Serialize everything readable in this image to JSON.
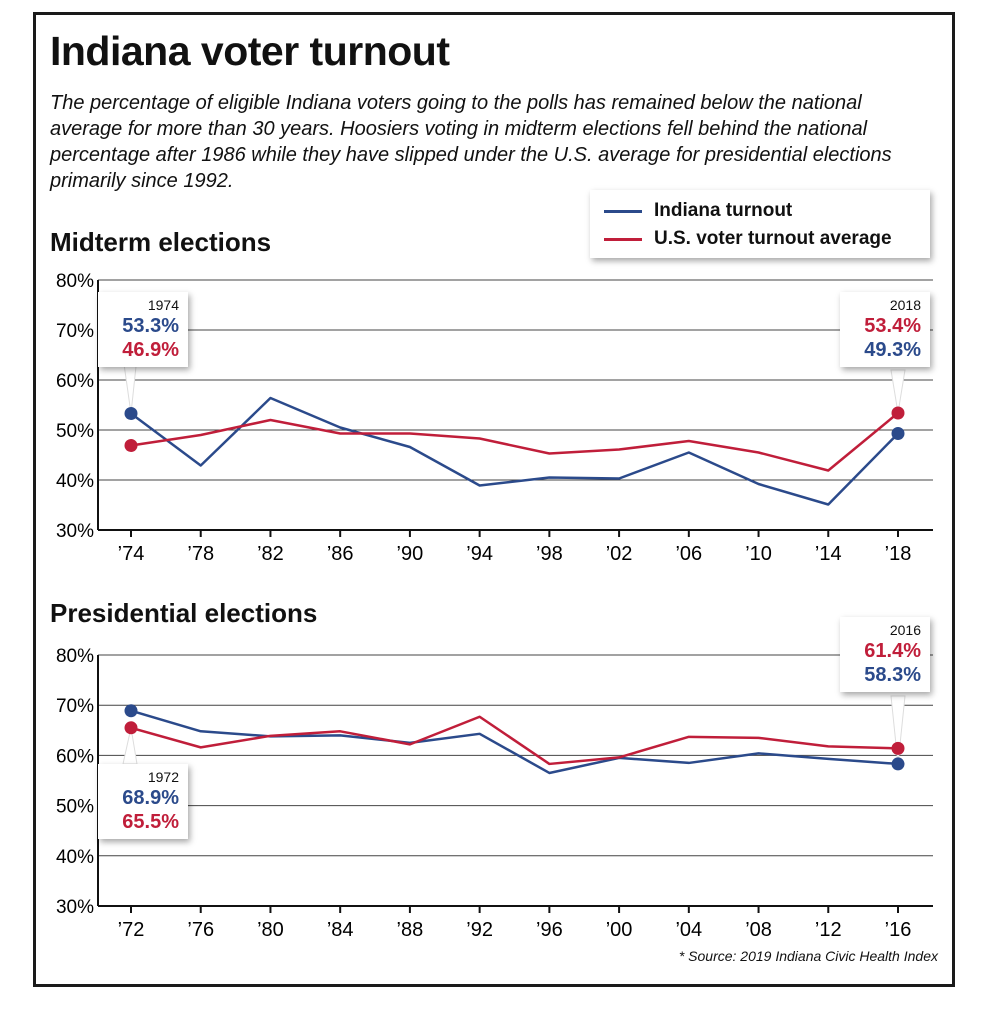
{
  "title": "Indiana voter turnout",
  "subtitle": "The percentage of eligible Indiana voters going to the polls has remained below the national average for more than 30 years. Hoosiers voting in midterm elections fell behind the national percentage after 1986 while they have slipped under the U.S. average for presidential elections primarily since 1992.",
  "legend": {
    "indiana": "Indiana turnout",
    "us": "U.S. voter turnout average"
  },
  "colors": {
    "indiana": "#2b4a8b",
    "us": "#c01e3a",
    "grid": "#444444"
  },
  "source": "* Source: 2019 Indiana Civic Health Index",
  "callouts": {
    "mid_left": {
      "year": "1974",
      "first": "53.3%",
      "second": "46.9%"
    },
    "mid_right": {
      "year": "2018",
      "first": "53.4%",
      "second": "49.3%"
    },
    "pres_left": {
      "year": "1972",
      "first": "68.9%",
      "second": "65.5%"
    },
    "pres_right": {
      "year": "2016",
      "first": "61.4%",
      "second": "58.3%"
    }
  },
  "chart_data": [
    {
      "type": "line",
      "title": "Midterm elections",
      "xlabel": "",
      "ylabel": "",
      "categories": [
        "’74",
        "’78",
        "’82",
        "’86",
        "’90",
        "’94",
        "’98",
        "’02",
        "’06",
        "’10",
        "’14",
        "’18"
      ],
      "ylim": [
        30,
        80
      ],
      "yticks": [
        "30%",
        "40%",
        "50%",
        "60%",
        "70%",
        "80%"
      ],
      "grid": true,
      "legend_position": "top-right",
      "series": [
        {
          "name": "Indiana turnout",
          "values": [
            53.3,
            42.9,
            56.4,
            50.5,
            46.6,
            38.9,
            40.5,
            40.3,
            45.5,
            39.2,
            35.1,
            49.3
          ]
        },
        {
          "name": "U.S. voter turnout average",
          "values": [
            46.9,
            49.0,
            52.0,
            49.3,
            49.3,
            48.3,
            45.3,
            46.1,
            47.8,
            45.5,
            41.9,
            53.4
          ]
        }
      ]
    },
    {
      "type": "line",
      "title": "Presidential elections",
      "xlabel": "",
      "ylabel": "",
      "categories": [
        "’72",
        "’76",
        "’80",
        "’84",
        "’88",
        "’92",
        "’96",
        "’00",
        "’04",
        "’08",
        "’12",
        "’16"
      ],
      "ylim": [
        30,
        80
      ],
      "yticks": [
        "30%",
        "40%",
        "50%",
        "60%",
        "70%",
        "80%"
      ],
      "grid": true,
      "series": [
        {
          "name": "Indiana turnout",
          "values": [
            68.9,
            64.8,
            63.8,
            64.0,
            62.5,
            64.3,
            56.5,
            59.5,
            58.5,
            60.4,
            59.3,
            58.3
          ]
        },
        {
          "name": "U.S. voter turnout average",
          "values": [
            65.5,
            61.6,
            63.9,
            64.8,
            62.2,
            67.7,
            58.3,
            59.6,
            63.7,
            63.5,
            61.8,
            61.4
          ]
        }
      ]
    }
  ]
}
